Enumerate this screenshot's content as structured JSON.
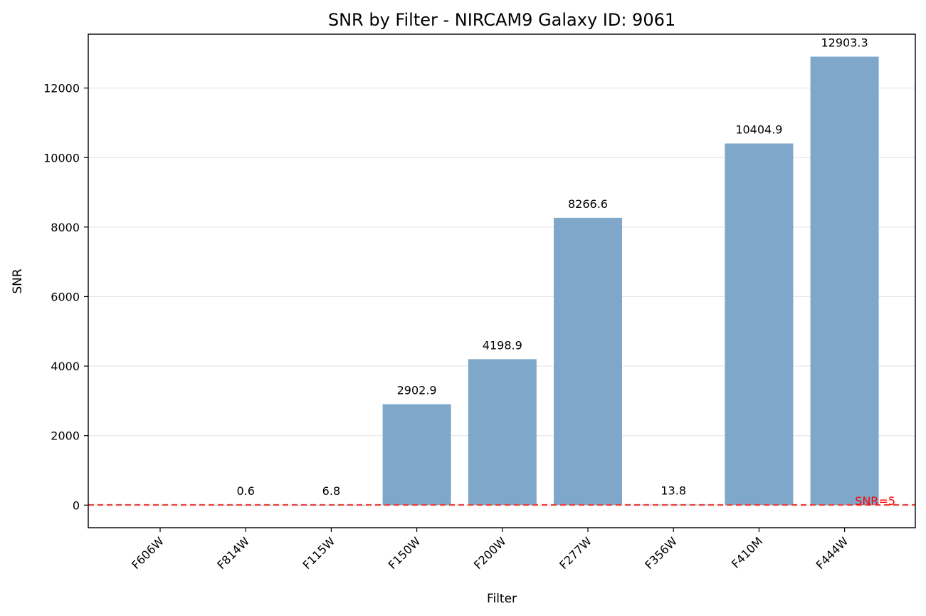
{
  "chart_data": {
    "type": "bar",
    "title": "SNR by Filter - NIRCAM9 Galaxy ID: 9061",
    "xlabel": "Filter",
    "ylabel": "SNR",
    "categories": [
      "F606W",
      "F814W",
      "F115W",
      "F150W",
      "F200W",
      "F277W",
      "F356W",
      "F410M",
      "F444W"
    ],
    "values": [
      null,
      0.6,
      6.8,
      2902.9,
      4198.9,
      8266.6,
      13.8,
      10404.9,
      12903.3
    ],
    "data_labels": [
      "",
      "0.6",
      "6.8",
      "2902.9",
      "4198.9",
      "8266.6",
      "13.8",
      "10404.9",
      "12903.3"
    ],
    "ylim": [
      -650,
      13550
    ],
    "yticks": [
      0,
      2000,
      4000,
      6000,
      8000,
      10000,
      12000
    ],
    "ytick_labels": [
      "0",
      "2000",
      "4000",
      "6000",
      "8000",
      "10000",
      "12000"
    ],
    "grid": "y",
    "bar_color": "#7ea7ca",
    "reference_line": {
      "value": 5,
      "label": "SNR=5",
      "color": "#e8413c",
      "text_color": "#ff0000",
      "style": "dashed"
    }
  }
}
